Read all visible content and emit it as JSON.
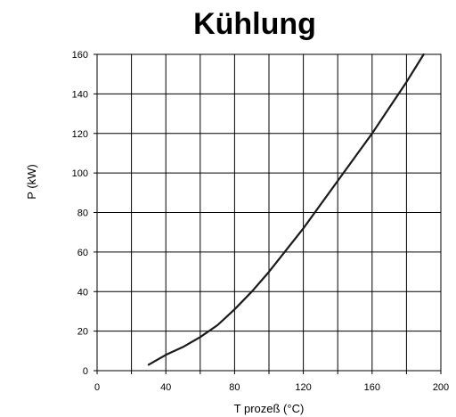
{
  "chart_data": {
    "type": "line",
    "title": "Kühlung",
    "xlabel": "T prozeß (°C)",
    "ylabel": "P (kW)",
    "xlim": [
      0,
      200
    ],
    "ylim": [
      0,
      160
    ],
    "grid": true,
    "x_ticks": [
      0,
      20,
      40,
      60,
      80,
      100,
      120,
      140,
      160,
      180,
      200
    ],
    "x_tick_labels": [
      "0",
      "",
      "40",
      "",
      "80",
      "",
      "120",
      "",
      "160",
      "",
      "200"
    ],
    "y_ticks": [
      0,
      20,
      40,
      60,
      80,
      100,
      120,
      140,
      160
    ],
    "y_tick_labels": [
      "0",
      "20",
      "40",
      "60",
      "80",
      "100",
      "120",
      "140",
      "160"
    ],
    "series": [
      {
        "color": "#1a1a1a",
        "x": [
          30,
          40,
          50,
          60,
          70,
          80,
          90,
          100,
          110,
          120,
          130,
          140,
          150,
          160,
          170,
          180,
          190
        ],
        "y": [
          3,
          8,
          12,
          17,
          23,
          31,
          40,
          50,
          61,
          72,
          84,
          96,
          108,
          120,
          133,
          146,
          160
        ]
      }
    ]
  }
}
